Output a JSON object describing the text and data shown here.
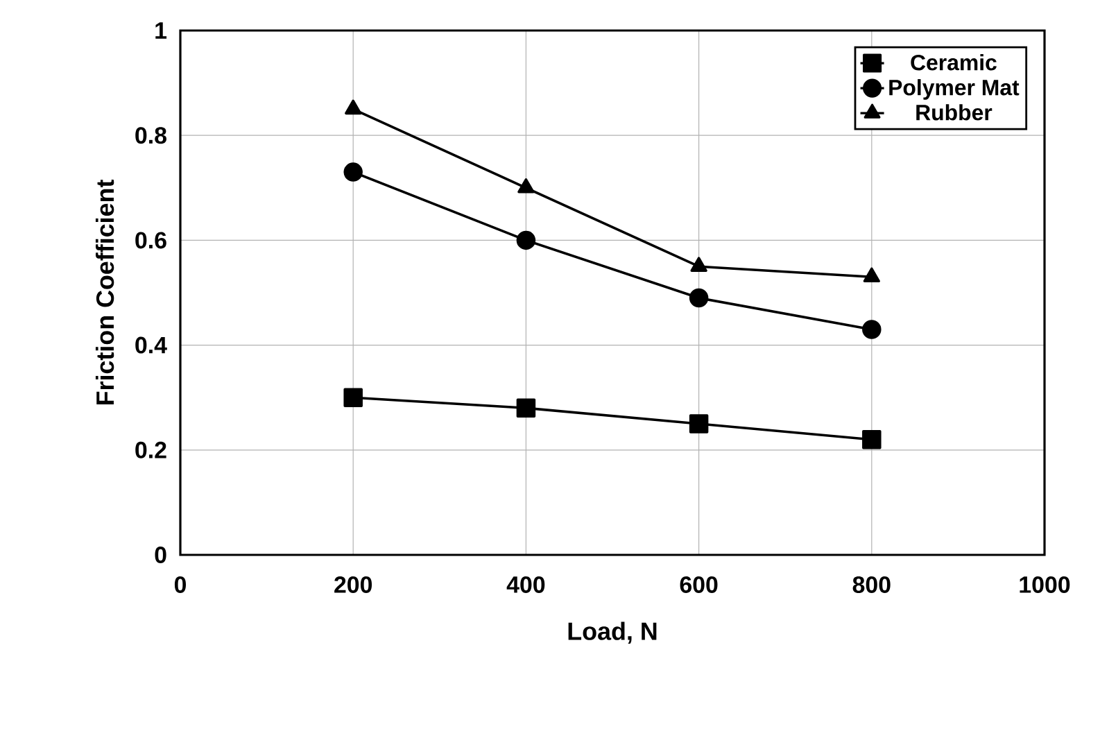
{
  "chart_data": {
    "type": "line",
    "xlabel": "Load, N",
    "ylabel": "Friction Coefficient",
    "x": [
      200,
      400,
      600,
      800
    ],
    "series": [
      {
        "name": "Ceramic",
        "color": "#000000",
        "marker": "square",
        "values": [
          0.3,
          0.28,
          0.25,
          0.22
        ]
      },
      {
        "name": "Polymer Mat",
        "color": "#000000",
        "marker": "circle",
        "values": [
          0.73,
          0.6,
          0.49,
          0.43
        ]
      },
      {
        "name": "Rubber",
        "color": "#000000",
        "marker": "triangle",
        "values": [
          0.85,
          0.7,
          0.55,
          0.53
        ]
      }
    ],
    "xlim": [
      0,
      1000
    ],
    "xticks": [
      0,
      200,
      400,
      600,
      800,
      1000
    ],
    "ylim": [
      0,
      1
    ],
    "yticks": [
      0,
      0.2,
      0.4,
      0.6,
      0.8,
      1
    ],
    "grid": true,
    "legend": "top right",
    "line_style": "solid"
  }
}
